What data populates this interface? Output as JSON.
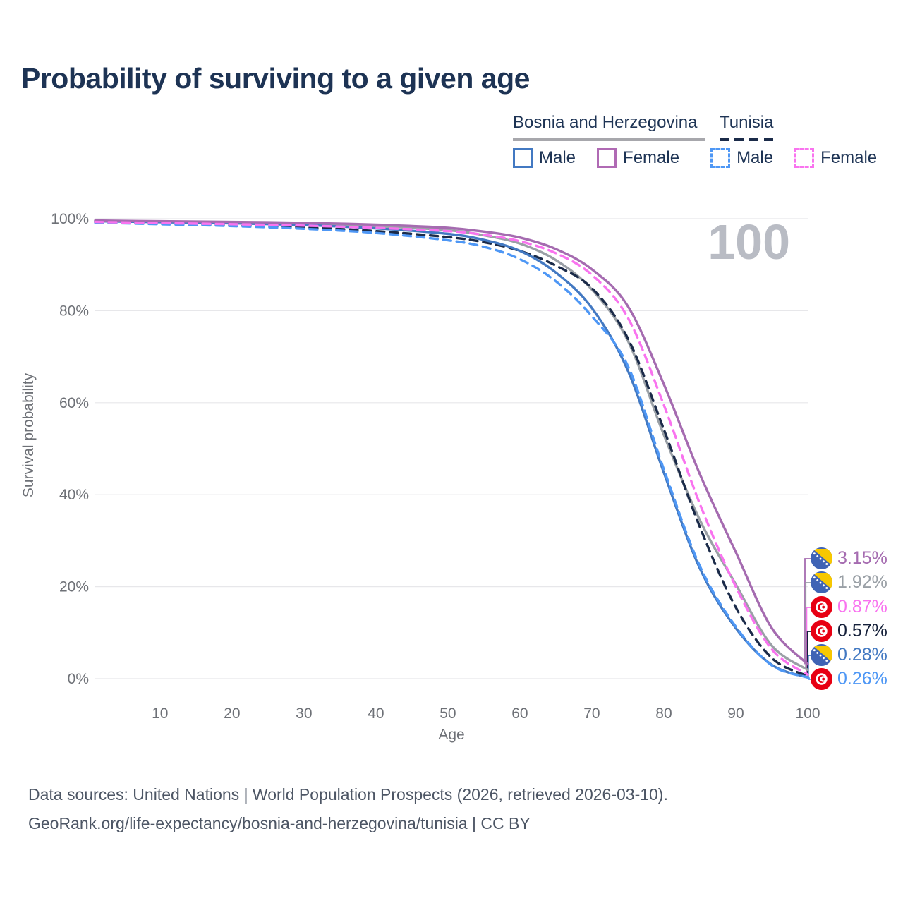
{
  "title": "Probability of surviving to a given age",
  "watermark": "100",
  "legend": {
    "group1": {
      "label": "Bosnia and Herzegovina",
      "style": "solid-gray-underline",
      "items": [
        {
          "label": "Male"
        },
        {
          "label": "Female"
        }
      ]
    },
    "group2": {
      "label": "Tunisia",
      "style": "dashed-navy-underline",
      "items": [
        {
          "label": "Male"
        },
        {
          "label": "Female"
        }
      ]
    }
  },
  "chart_data": {
    "type": "line",
    "title": "Probability of surviving to a given age",
    "xlabel": "Age",
    "ylabel": "Survival probability",
    "x_ticks": [
      10,
      20,
      30,
      40,
      50,
      60,
      70,
      80,
      90,
      100
    ],
    "y_ticks": [
      {
        "pct": 0,
        "label": "0%"
      },
      {
        "pct": 20,
        "label": "20%"
      },
      {
        "pct": 40,
        "label": "40%"
      },
      {
        "pct": 60,
        "label": "60%"
      },
      {
        "pct": 80,
        "label": "80%"
      },
      {
        "pct": 100,
        "label": "100%"
      }
    ],
    "xlim": [
      1,
      100
    ],
    "ylim": [
      0,
      100
    ],
    "grid": "horizontal",
    "legend_position": "top-right",
    "ages": [
      1,
      10,
      20,
      30,
      40,
      50,
      55,
      60,
      65,
      70,
      75,
      80,
      85,
      90,
      95,
      100
    ],
    "series": [
      {
        "name": "Bosnia and Herzegovina — Both sexes",
        "color": "#9aa0a6",
        "dash": "solid",
        "values": [
          99.5,
          99.35,
          99.15,
          98.9,
          98.4,
          97.5,
          96.4,
          94.6,
          91.0,
          84.6,
          73.5,
          53.0,
          34.5,
          20.5,
          7.2,
          1.92
        ]
      },
      {
        "name": "Tunisia — Both sexes",
        "color": "#1b2b49",
        "dash": "dashed",
        "values": [
          99.25,
          98.95,
          98.6,
          98.1,
          97.3,
          96.0,
          94.9,
          93.0,
          89.8,
          84.9,
          74.0,
          54.2,
          33.0,
          15.5,
          4.5,
          0.57
        ]
      },
      {
        "name": "Bosnia and Herzegovina — Male",
        "color": "#4379c2",
        "dash": "solid",
        "values": [
          99.45,
          99.25,
          99.0,
          98.6,
          97.9,
          96.7,
          95.4,
          93.0,
          88.3,
          80.6,
          67.0,
          44.8,
          24.0,
          11.0,
          3.0,
          0.28
        ]
      },
      {
        "name": "Tunisia — Male",
        "color": "#4e97f5",
        "dash": "dashed",
        "values": [
          99.15,
          98.8,
          98.4,
          97.8,
          96.9,
          95.3,
          93.9,
          91.2,
          86.4,
          78.8,
          68.0,
          45.5,
          24.5,
          11.3,
          2.9,
          0.26
        ]
      },
      {
        "name": "Bosnia and Herzegovina — Female",
        "color": "#a56bb0",
        "dash": "solid",
        "values": [
          99.6,
          99.45,
          99.3,
          99.1,
          98.7,
          98.0,
          97.2,
          95.9,
          93.4,
          89.0,
          81.0,
          64.0,
          44.5,
          27.5,
          11.0,
          3.15
        ]
      },
      {
        "name": "Tunisia — Female",
        "color": "#f973ef",
        "dash": "dashed",
        "values": [
          99.3,
          99.05,
          98.8,
          98.5,
          98.0,
          97.3,
          96.5,
          95.1,
          92.5,
          87.8,
          78.5,
          59.5,
          38.0,
          20.0,
          6.4,
          0.87
        ]
      }
    ],
    "end_labels": [
      {
        "value": "3.15%",
        "flag": "bosnia",
        "color": "#a56bb0",
        "series": 4
      },
      {
        "value": "1.92%",
        "flag": "bosnia",
        "color": "#9aa0a6",
        "series": 0
      },
      {
        "value": "0.87%",
        "flag": "tunisia",
        "color": "#f973ef",
        "series": 5
      },
      {
        "value": "0.57%",
        "flag": "tunisia",
        "color": "#15203a",
        "series": 1
      },
      {
        "value": "0.28%",
        "flag": "bosnia",
        "color": "#4379c2",
        "series": 2
      },
      {
        "value": "0.26%",
        "flag": "tunisia",
        "color": "#4e97f5",
        "series": 3
      }
    ]
  },
  "footer": {
    "line1": "Data sources: United Nations | World Population Prospects (2026, retrieved 2026-03-10).",
    "line2": "GeoRank.org/life-expectancy/bosnia-and-herzegovina/tunisia | CC BY"
  }
}
